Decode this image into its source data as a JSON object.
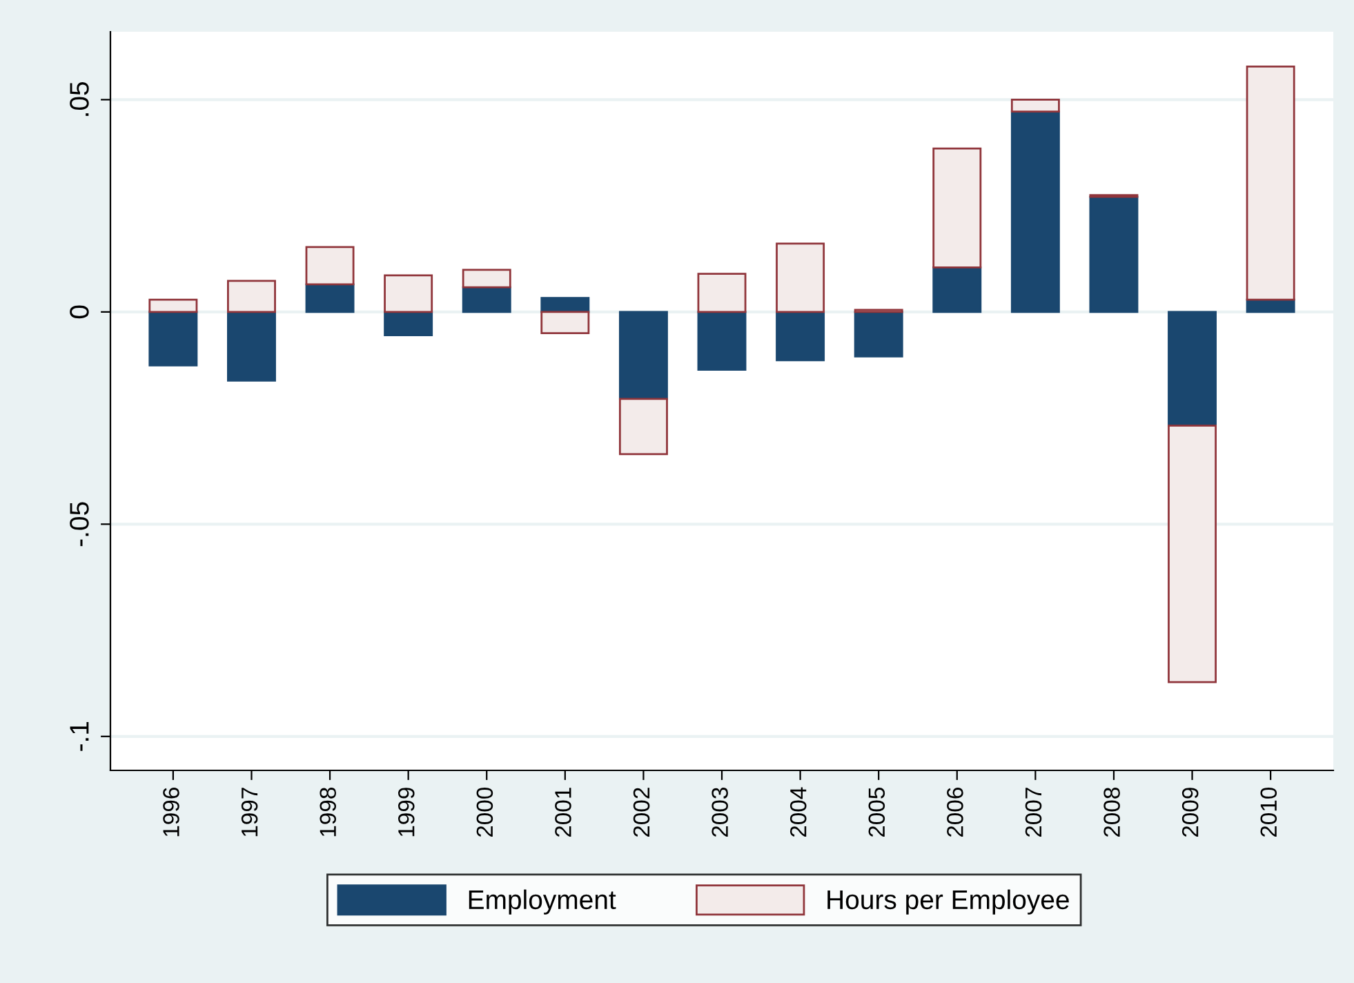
{
  "chart_data": {
    "type": "bar",
    "stacked": true,
    "categories": [
      "1996",
      "1997",
      "1998",
      "1999",
      "2000",
      "2001",
      "2002",
      "2003",
      "2004",
      "2005",
      "2006",
      "2007",
      "2008",
      "2009",
      "2010"
    ],
    "series": [
      {
        "name": "Employment",
        "color": "#1a476f",
        "values": [
          -0.0126,
          -0.0162,
          0.0065,
          -0.0055,
          0.0058,
          0.0033,
          -0.0205,
          -0.0136,
          -0.0114,
          -0.0105,
          0.0105,
          0.0472,
          0.0271,
          -0.0268,
          0.0029
        ]
      },
      {
        "name": "Hours per Employee",
        "color": "#f3ebea",
        "values": [
          0.0029,
          0.0073,
          0.0088,
          0.0086,
          0.0041,
          -0.005,
          -0.013,
          0.009,
          0.0161,
          0.0005,
          0.028,
          0.0028,
          0.0004,
          -0.0604,
          0.0549
        ]
      }
    ],
    "ylim": [
      -0.108,
      0.066
    ],
    "yticks": [
      {
        "value": -0.1,
        "label": "-.1"
      },
      {
        "value": -0.05,
        "label": "-.05"
      },
      {
        "value": 0,
        "label": "0"
      },
      {
        "value": 0.05,
        "label": ".05"
      }
    ],
    "grid": "y",
    "legend": "bottom"
  }
}
